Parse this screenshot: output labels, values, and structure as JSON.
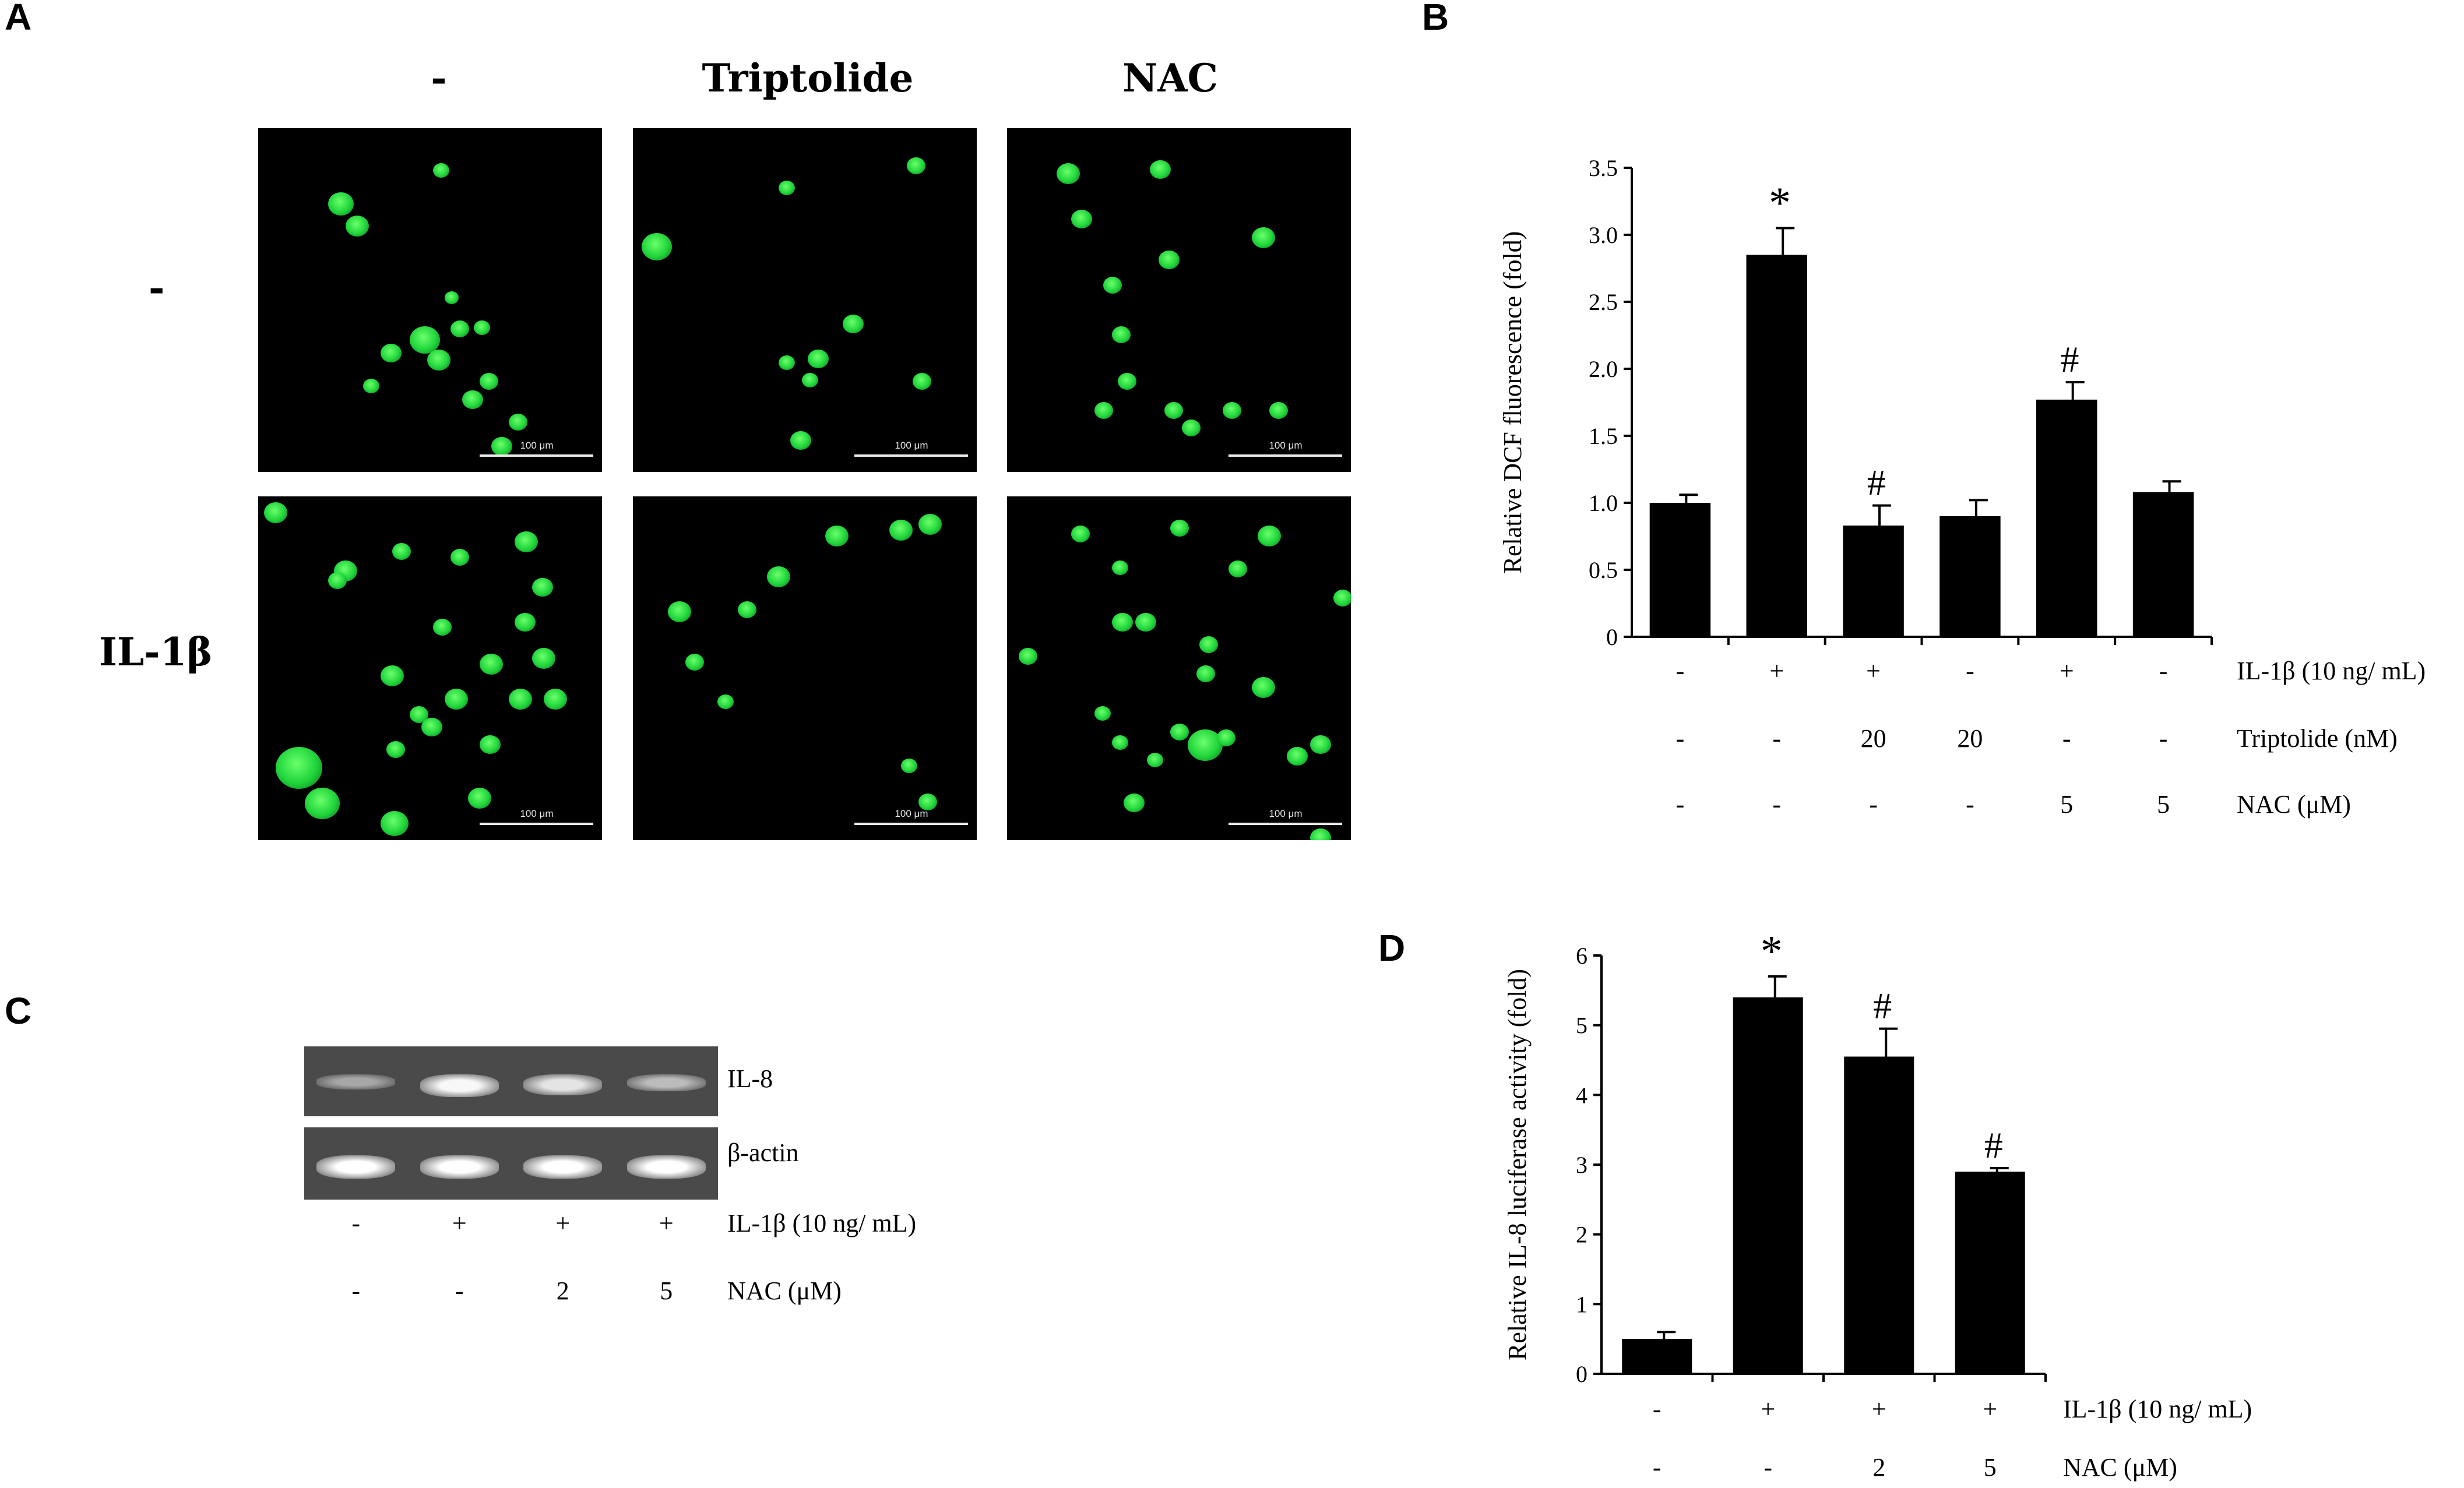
{
  "panels": {
    "a": {
      "letter": "A",
      "column_headers": [
        "-",
        "Triptolide",
        "NAC"
      ],
      "row_headers": [
        "-",
        "IL-1β"
      ],
      "scale_bar": "100 μm",
      "colors": {
        "background": "#000000",
        "cell": "#1fd43a"
      }
    },
    "b": {
      "letter": "B",
      "conditions": [
        {
          "label": "IL-1β (10 ng/ mL)",
          "values": [
            "-",
            "+",
            "+",
            "-",
            "+",
            "-"
          ]
        },
        {
          "label": "Triptolide (nM)",
          "values": [
            "-",
            "-",
            "20",
            "20",
            "-",
            "-"
          ]
        },
        {
          "label": "NAC (μM)",
          "values": [
            "-",
            "-",
            "-",
            "-",
            "5",
            "5"
          ]
        }
      ]
    },
    "c": {
      "letter": "C",
      "bands": [
        "IL-8",
        "β-actin"
      ],
      "conditions": [
        {
          "label": "IL-1β (10 ng/ mL)",
          "values": [
            "-",
            "+",
            "+",
            "+"
          ]
        },
        {
          "label": "NAC (μM)",
          "values": [
            "-",
            "-",
            "2",
            "5"
          ]
        }
      ],
      "band_intensity": {
        "IL-8": [
          0.35,
          0.95,
          0.8,
          0.5
        ],
        "β-actin": [
          1.0,
          1.0,
          1.0,
          1.0
        ]
      }
    },
    "d": {
      "letter": "D",
      "conditions": [
        {
          "label": "IL-1β (10 ng/ mL)",
          "values": [
            "-",
            "+",
            "+",
            "+"
          ]
        },
        {
          "label": "NAC (μM)",
          "values": [
            "-",
            "-",
            "2",
            "5"
          ]
        }
      ]
    }
  },
  "chart_data": [
    {
      "panel": "B",
      "type": "bar",
      "ylabel": "Relative DCF fluorescence (fold)",
      "ylim": [
        0,
        3.5
      ],
      "yticks": [
        "0",
        "0.5",
        "1.0",
        "1.5",
        "2.0",
        "2.5",
        "3.0",
        "3.5"
      ],
      "values": [
        1.0,
        2.85,
        0.83,
        0.9,
        1.77,
        1.08
      ],
      "errors": [
        0.06,
        0.2,
        0.15,
        0.12,
        0.13,
        0.08
      ],
      "annotations": [
        "",
        "*",
        "#",
        "",
        "#",
        ""
      ],
      "bar_color": "#000000"
    },
    {
      "panel": "D",
      "type": "bar",
      "ylabel": "Relative IL-8 luciferase activity (fold)",
      "ylim": [
        0,
        6
      ],
      "yticks": [
        "0",
        "1",
        "2",
        "3",
        "4",
        "5",
        "6"
      ],
      "values": [
        0.5,
        5.4,
        4.55,
        2.9
      ],
      "errors": [
        0.1,
        0.3,
        0.4,
        0.05
      ],
      "annotations": [
        "",
        "*",
        "#",
        "#"
      ],
      "bar_color": "#000000"
    }
  ]
}
